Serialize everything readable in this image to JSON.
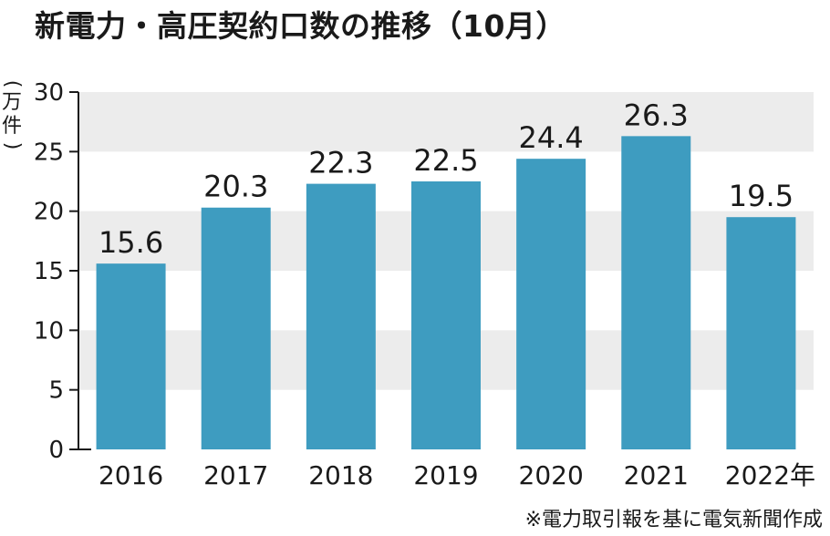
{
  "title": "新電力・高圧契約口数の推移（10月）",
  "ylabel": "万件",
  "source_note": "※電力取引報を基に電気新聞作成",
  "colors": {
    "bar": "#3e9cc0",
    "band": "#ececec",
    "axis": "#1a1a1a"
  },
  "chart_data": {
    "type": "bar",
    "title": "新電力・高圧契約口数の推移（10月）",
    "xlabel": "",
    "ylabel": "万件",
    "categories": [
      "2016",
      "2017",
      "2018",
      "2019",
      "2020",
      "2021",
      "2022年"
    ],
    "values": [
      15.6,
      20.3,
      22.3,
      22.5,
      24.4,
      26.3,
      19.5
    ],
    "value_labels": [
      "15.6",
      "20.3",
      "22.3",
      "22.5",
      "24.4",
      "26.3",
      "19.5"
    ],
    "ylim": [
      0,
      30
    ],
    "yticks": [
      0,
      5,
      10,
      15,
      20,
      25,
      30
    ],
    "grid": "alternating-bands",
    "legend": "none"
  }
}
